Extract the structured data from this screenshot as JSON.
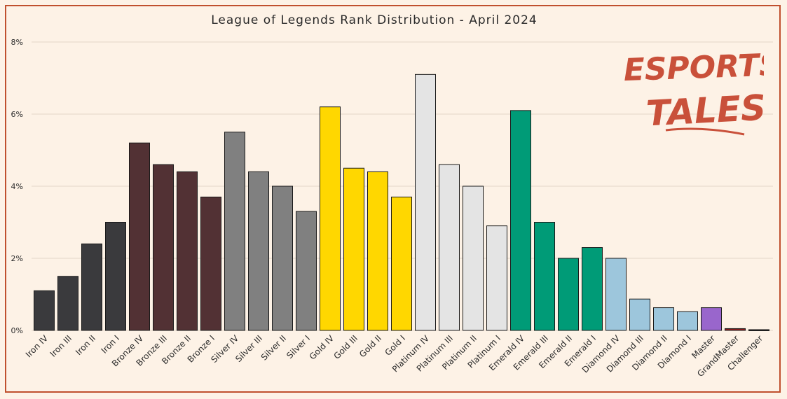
{
  "chart_data": {
    "type": "bar",
    "title": "League of Legends Rank Distribution  - April 2024",
    "xlabel": "",
    "ylabel": "",
    "ylim": [
      0,
      8
    ],
    "y_ticks": [
      "0%",
      "2%",
      "4%",
      "6%",
      "8%"
    ],
    "y_tick_values": [
      0,
      2,
      4,
      6,
      8
    ],
    "grid": true,
    "categories": [
      "Iron IV",
      "Iron III",
      "Iron II",
      "Iron I",
      "Bronze IV",
      "Bronze III",
      "Bronze II",
      "Bronze I",
      "Silver IV",
      "Silver III",
      "Silver II",
      "Silver I",
      "Gold IV",
      "Gold III",
      "Gold II",
      "Gold I",
      "Platinum IV",
      "Platinum III",
      "Platinum II",
      "Platinum I",
      "Emerald IV",
      "Emerald III",
      "Emerald II",
      "Emerald I",
      "Diamond IV",
      "Diamond III",
      "Diamond II",
      "Diamond I",
      "Master",
      "GrandMaster",
      "Challenger"
    ],
    "values": [
      1.1,
      1.5,
      2.4,
      3.0,
      5.2,
      4.6,
      4.4,
      3.7,
      5.5,
      4.4,
      4.0,
      3.3,
      6.2,
      4.5,
      4.4,
      3.7,
      7.1,
      4.6,
      4.0,
      2.9,
      6.1,
      3.0,
      2.0,
      2.3,
      2.0,
      0.87,
      0.63,
      0.52,
      0.63,
      0.05,
      0.02
    ],
    "colors": [
      "#3a3a3d",
      "#3a3a3d",
      "#3a3a3d",
      "#3a3a3d",
      "#523134",
      "#523134",
      "#523134",
      "#523134",
      "#808080",
      "#808080",
      "#808080",
      "#808080",
      "#ffd700",
      "#ffd700",
      "#ffd700",
      "#ffd700",
      "#e4e4e4",
      "#e4e4e4",
      "#e4e4e4",
      "#e4e4e4",
      "#009b77",
      "#009b77",
      "#009b77",
      "#009b77",
      "#9dc6dc",
      "#9dc6dc",
      "#9dc6dc",
      "#9dc6dc",
      "#9966cc",
      "#8b1c1c",
      "#1a1a1a"
    ]
  },
  "logo": {
    "line1": "ESPORTS",
    "line2": "TALES"
  }
}
